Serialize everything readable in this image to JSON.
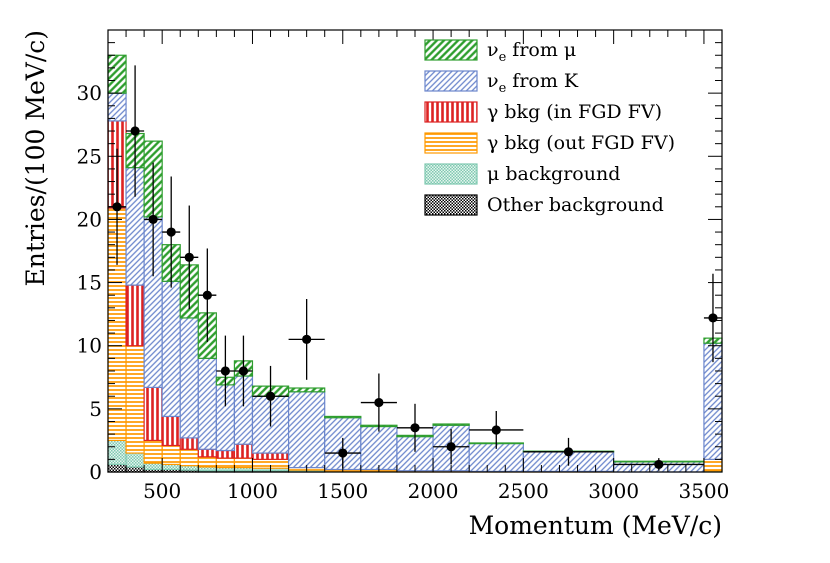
{
  "chart_data": {
    "type": "bar",
    "subtype": "stacked-histogram-with-data-points",
    "xlabel": "Momentum (MeV/c)",
    "ylabel": "Entries/(100 MeV/c)",
    "xlim": [
      200,
      3600
    ],
    "ylim": [
      0,
      35
    ],
    "x_ticks": [
      500,
      1000,
      1500,
      2000,
      2500,
      3000,
      3500
    ],
    "y_ticks": [
      0,
      5,
      10,
      15,
      20,
      25,
      30
    ],
    "legend_position": "top-right",
    "bins": [
      [
        200,
        300
      ],
      [
        300,
        400
      ],
      [
        400,
        500
      ],
      [
        500,
        600
      ],
      [
        600,
        700
      ],
      [
        700,
        800
      ],
      [
        800,
        900
      ],
      [
        900,
        1000
      ],
      [
        1000,
        1200
      ],
      [
        1200,
        1400
      ],
      [
        1400,
        1600
      ],
      [
        1600,
        1800
      ],
      [
        1800,
        2000
      ],
      [
        2000,
        2200
      ],
      [
        2200,
        2500
      ],
      [
        2500,
        3000
      ],
      [
        3000,
        3500
      ],
      [
        3500,
        3600
      ]
    ],
    "series": [
      {
        "name": "Other background",
        "legend": "Other background",
        "color": "#000000",
        "values": [
          0.6,
          0.4,
          0.2,
          0.2,
          0.15,
          0.1,
          0.1,
          0.1,
          0.1,
          0.05,
          0,
          0,
          0,
          0,
          0,
          0,
          0,
          0
        ]
      },
      {
        "name": "mu background",
        "legend": "μ background",
        "color": "#7fc9b0",
        "values": [
          1.9,
          1.1,
          0.5,
          0.4,
          0.35,
          0.3,
          0.25,
          0.25,
          0.2,
          0.1,
          0.05,
          0.05,
          0,
          0,
          0,
          0,
          0,
          0.1
        ]
      },
      {
        "name": "gamma bkg out FGD FV",
        "legend": "γ bkg (out FGD FV)",
        "color": "#ff9900",
        "values": [
          18.4,
          8.5,
          1.8,
          1.5,
          1.3,
          0.8,
          0.75,
          0.75,
          0.7,
          0.2,
          0.15,
          0.15,
          0.1,
          0.1,
          0.05,
          0.05,
          0,
          0.9
        ]
      },
      {
        "name": "gamma bkg in FGD FV",
        "legend": "γ bkg (in FGD FV)",
        "color": "#dd2222",
        "values": [
          6.9,
          4.8,
          4.2,
          2.3,
          0.9,
          0.6,
          0.6,
          1.1,
          0.5,
          0,
          0,
          0,
          0,
          0,
          0,
          0,
          0,
          0
        ]
      },
      {
        "name": "nue from K",
        "legend": "K",
        "color": "#6b86cc",
        "values": [
          2.2,
          9.3,
          13.5,
          10.7,
          9.5,
          7.2,
          5.2,
          5.4,
          4.5,
          6.0,
          4.1,
          3.4,
          2.7,
          3.6,
          2.2,
          1.55,
          0.8,
          9.2
        ]
      },
      {
        "name": "nue from mu",
        "legend": "μ",
        "color": "#2e9e2e",
        "values": [
          3.0,
          2.7,
          6.0,
          2.9,
          4.2,
          3.6,
          0.6,
          1.2,
          0.8,
          0.3,
          0.1,
          0.1,
          0.1,
          0.1,
          0.05,
          0.05,
          0.05,
          0.4
        ]
      }
    ],
    "legend_labels": {
      "nu_symbol": "ν",
      "sub_e": "e",
      "from": " from "
    },
    "data_points": [
      {
        "x": 250,
        "y": 21,
        "xerr": 50,
        "yerr": 4.6
      },
      {
        "x": 350,
        "y": 27,
        "xerr": 50,
        "yerr": 5.2
      },
      {
        "x": 450,
        "y": 20,
        "xerr": 50,
        "yerr": 4.5
      },
      {
        "x": 550,
        "y": 19,
        "xerr": 50,
        "yerr": 4.4
      },
      {
        "x": 650,
        "y": 17,
        "xerr": 50,
        "yerr": 4.1
      },
      {
        "x": 750,
        "y": 14,
        "xerr": 50,
        "yerr": 3.7
      },
      {
        "x": 850,
        "y": 8,
        "xerr": 50,
        "yerr": 2.8
      },
      {
        "x": 950,
        "y": 8,
        "xerr": 50,
        "yerr": 2.8
      },
      {
        "x": 1100,
        "y": 6,
        "xerr": 100,
        "yerr": 2.4
      },
      {
        "x": 1300,
        "y": 10.5,
        "xerr": 100,
        "yerr": 3.2
      },
      {
        "x": 1500,
        "y": 1.5,
        "xerr": 100,
        "yerr": 1.2
      },
      {
        "x": 1700,
        "y": 5.5,
        "xerr": 100,
        "yerr": 2.3
      },
      {
        "x": 1900,
        "y": 3.5,
        "xerr": 100,
        "yerr": 1.9
      },
      {
        "x": 2100,
        "y": 2,
        "xerr": 100,
        "yerr": 1.4
      },
      {
        "x": 2350,
        "y": 3.33,
        "xerr": 150,
        "yerr": 1.5
      },
      {
        "x": 2750,
        "y": 1.6,
        "xerr": 250,
        "yerr": 1.1
      },
      {
        "x": 3250,
        "y": 0.6,
        "xerr": 250,
        "yerr": 0.5
      },
      {
        "x": 3550,
        "y": 12.2,
        "xerr": 50,
        "yerr": 3.5
      }
    ]
  }
}
